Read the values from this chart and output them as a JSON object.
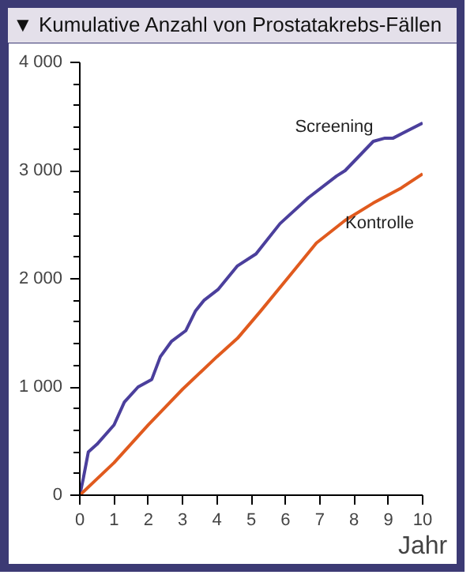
{
  "chart_data": {
    "type": "line",
    "title": "▼ Kumulative Anzahl von Prostatakrebs-Fällen",
    "xlabel": "Jahr",
    "xlim": [
      0,
      10
    ],
    "xticks": [
      0,
      1,
      2,
      3,
      4,
      5,
      6,
      7,
      8,
      9,
      10
    ],
    "ylim": [
      0,
      4000
    ],
    "yticks": [
      0,
      {
        "value": 1000,
        "label": "1 000"
      },
      {
        "value": 2000,
        "label": "2 000"
      },
      {
        "value": 3000,
        "label": "3 000"
      },
      {
        "value": 4000,
        "label": "4 000"
      }
    ],
    "grid": false,
    "legend": false,
    "line_style": "solid",
    "marker": "none",
    "series": [
      {
        "name": "Screening",
        "color": "#4b3f9c",
        "x": [
          0,
          0.1,
          0.25,
          0.5,
          1,
          1.3,
          1.7,
          2.1,
          2.35,
          2.67,
          3.09,
          3.37,
          3.62,
          4.03,
          4.6,
          5.14,
          5.84,
          6.67,
          7.49,
          7.74,
          8.56,
          8.9,
          9.14,
          10
        ],
        "values": [
          0,
          150,
          400,
          470,
          650,
          860,
          1000,
          1070,
          1280,
          1420,
          1520,
          1700,
          1800,
          1900,
          2120,
          2230,
          2510,
          2750,
          2950,
          3000,
          3270,
          3300,
          3300,
          3440
        ]
      },
      {
        "name": "Kontrolle",
        "color": "#e05a1e",
        "x": [
          0,
          1,
          2,
          3,
          4,
          4.6,
          5.27,
          6.1,
          6.9,
          7.74,
          8.56,
          9.38,
          10
        ],
        "values": [
          0,
          300,
          650,
          980,
          1280,
          1450,
          1700,
          2020,
          2330,
          2540,
          2700,
          2840,
          2970
        ]
      }
    ]
  }
}
